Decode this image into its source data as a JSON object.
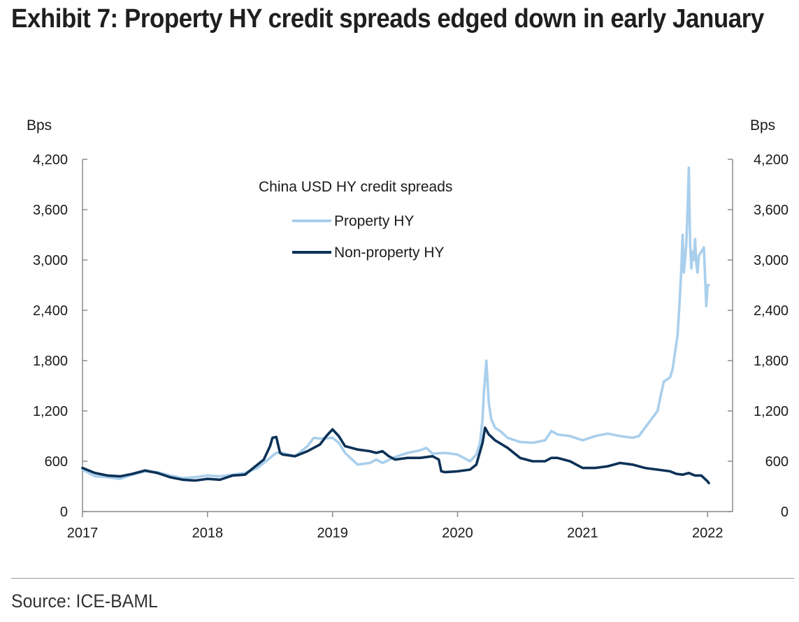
{
  "title": "Exhibit 7: Property HY credit spreads edged down in early January",
  "source": "Source: ICE-BAML",
  "colors": {
    "property": "#a9cfec",
    "nonproperty": "#0c3157",
    "axis": "#8c8c8c"
  },
  "chart_data": {
    "type": "line",
    "title": "China USD HY credit spreads",
    "ylabel_left": "Bps",
    "ylabel_right": "Bps",
    "ylim": [
      0,
      4200
    ],
    "yticks": [
      0,
      600,
      1200,
      1800,
      2400,
      3000,
      3600,
      4200
    ],
    "ytick_labels": [
      "0",
      "600",
      "1,200",
      "1,800",
      "2,400",
      "3,000",
      "3,600",
      "4,200"
    ],
    "xlim": [
      2017.0,
      2022.2
    ],
    "xticks": [
      2017,
      2018,
      2019,
      2020,
      2021,
      2022
    ],
    "xtick_labels": [
      "2017",
      "2018",
      "2019",
      "2020",
      "2021",
      "2022"
    ],
    "legend_position": "top-center",
    "series": [
      {
        "name": "Property HY",
        "x": [
          2017.0,
          2017.1,
          2017.2,
          2017.3,
          2017.4,
          2017.5,
          2017.6,
          2017.7,
          2017.8,
          2017.9,
          2018.0,
          2018.1,
          2018.2,
          2018.3,
          2018.4,
          2018.5,
          2018.55,
          2018.6,
          2018.7,
          2018.8,
          2018.85,
          2018.9,
          2019.0,
          2019.05,
          2019.1,
          2019.2,
          2019.3,
          2019.35,
          2019.4,
          2019.5,
          2019.6,
          2019.7,
          2019.75,
          2019.8,
          2019.9,
          2020.0,
          2020.1,
          2020.15,
          2020.18,
          2020.2,
          2020.21,
          2020.23,
          2020.25,
          2020.27,
          2020.3,
          2020.35,
          2020.4,
          2020.5,
          2020.6,
          2020.7,
          2020.75,
          2020.8,
          2020.9,
          2021.0,
          2021.1,
          2021.2,
          2021.3,
          2021.4,
          2021.45,
          2021.5,
          2021.55,
          2021.6,
          2021.62,
          2021.65,
          2021.7,
          2021.72,
          2021.74,
          2021.76,
          2021.78,
          2021.79,
          2021.8,
          2021.81,
          2021.82,
          2021.83,
          2021.84,
          2021.85,
          2021.86,
          2021.87,
          2021.88,
          2021.89,
          2021.9,
          2021.91,
          2021.92,
          2021.93,
          2021.95,
          2021.97,
          2021.99,
          2022.0,
          2022.01
        ],
        "values": [
          500,
          420,
          410,
          390,
          440,
          480,
          470,
          430,
          400,
          410,
          430,
          420,
          440,
          460,
          520,
          640,
          700,
          700,
          660,
          780,
          880,
          870,
          880,
          820,
          700,
          560,
          580,
          620,
          580,
          650,
          700,
          730,
          760,
          690,
          700,
          680,
          600,
          680,
          820,
          1100,
          1400,
          1800,
          1300,
          1100,
          1000,
          950,
          880,
          830,
          820,
          850,
          960,
          920,
          900,
          850,
          900,
          930,
          900,
          880,
          900,
          1000,
          1100,
          1200,
          1350,
          1550,
          1600,
          1700,
          1900,
          2100,
          2600,
          2900,
          3300,
          2850,
          3000,
          3200,
          3600,
          4100,
          3200,
          2900,
          3100,
          3000,
          3250,
          2950,
          2850,
          3050,
          3100,
          3150,
          2450,
          2700,
          2700
        ]
      },
      {
        "name": "Non-property HY",
        "x": [
          2017.0,
          2017.05,
          2017.1,
          2017.2,
          2017.3,
          2017.4,
          2017.5,
          2017.6,
          2017.7,
          2017.8,
          2017.9,
          2018.0,
          2018.1,
          2018.2,
          2018.3,
          2018.4,
          2018.45,
          2018.5,
          2018.52,
          2018.55,
          2018.58,
          2018.6,
          2018.7,
          2018.8,
          2018.9,
          2018.95,
          2019.0,
          2019.05,
          2019.1,
          2019.2,
          2019.3,
          2019.35,
          2019.4,
          2019.45,
          2019.5,
          2019.6,
          2019.7,
          2019.8,
          2019.85,
          2019.87,
          2019.9,
          2020.0,
          2020.1,
          2020.15,
          2020.2,
          2020.22,
          2020.25,
          2020.3,
          2020.4,
          2020.5,
          2020.6,
          2020.7,
          2020.75,
          2020.8,
          2020.9,
          2021.0,
          2021.1,
          2021.2,
          2021.3,
          2021.4,
          2021.5,
          2021.6,
          2021.7,
          2021.75,
          2021.8,
          2021.85,
          2021.9,
          2021.95,
          2022.0,
          2022.01
        ],
        "values": [
          520,
          490,
          460,
          430,
          420,
          450,
          490,
          460,
          410,
          380,
          370,
          390,
          380,
          430,
          440,
          560,
          620,
          780,
          880,
          890,
          700,
          680,
          660,
          720,
          800,
          900,
          980,
          900,
          780,
          740,
          720,
          700,
          720,
          660,
          620,
          640,
          640,
          660,
          620,
          480,
          470,
          480,
          500,
          560,
          820,
          1000,
          920,
          850,
          760,
          640,
          600,
          600,
          640,
          640,
          600,
          520,
          520,
          540,
          580,
          560,
          520,
          500,
          480,
          450,
          440,
          460,
          430,
          430,
          360,
          340
        ]
      }
    ]
  }
}
